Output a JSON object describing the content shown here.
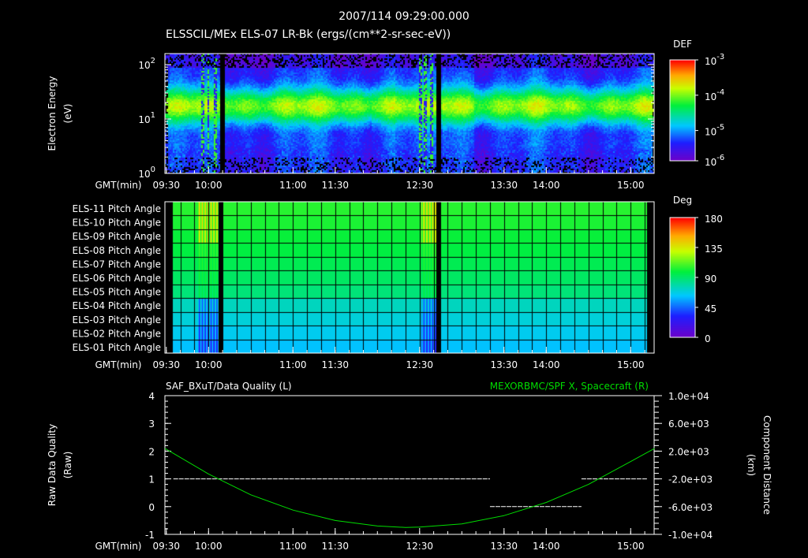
{
  "header": {
    "timestamp": "2007/114 09:29:00.000",
    "title": "ELSSCIL/MEx ELS-07 LR-Bk  (ergs/(cm**2-sr-sec-eV))"
  },
  "chart_data": [
    {
      "type": "heatmap",
      "name": "energy-spectrogram",
      "ylabel": "Electron Energy (eV)",
      "yscale": "log",
      "ylim": [
        1,
        160
      ],
      "yticks": [
        "10^0",
        "10^1",
        "10^2"
      ],
      "xlabel": "GMT(min)",
      "xlim": [
        "09:29",
        "15:17"
      ],
      "xticks": [
        "09:30",
        "10:00",
        "11:00",
        "11:30",
        "12:30",
        "13:30",
        "14:00",
        "15:00"
      ],
      "colorbar": {
        "label": "DEF",
        "scale": "log",
        "range": [
          1e-06,
          0.001
        ],
        "ticks": [
          "10^-3",
          "10^-4",
          "10^-5",
          "10^-6"
        ]
      },
      "peak_energy_eV": 20,
      "data_gaps": [
        "10:07",
        "12:46"
      ]
    },
    {
      "type": "heatmap",
      "name": "pitch-angle",
      "rows": [
        "ELS-11 Pitch Angle",
        "ELS-10 Pitch Angle",
        "ELS-09 Pitch Angle",
        "ELS-08 Pitch Angle",
        "ELS-07 Pitch Angle",
        "ELS-06 Pitch Angle",
        "ELS-05 Pitch Angle",
        "ELS-04 Pitch Angle",
        "ELS-03 Pitch Angle",
        "ELS-02 Pitch Angle",
        "ELS-01 Pitch Angle"
      ],
      "row_values_deg": [
        105,
        103,
        100,
        98,
        95,
        92,
        88,
        75,
        70,
        66,
        62
      ],
      "xlabel": "GMT(min)",
      "xticks": [
        "09:30",
        "10:00",
        "11:00",
        "11:30",
        "12:30",
        "13:30",
        "14:00",
        "15:00"
      ],
      "colorbar": {
        "label": "Deg",
        "range": [
          0,
          180
        ],
        "ticks": [
          "180",
          "135",
          "90",
          "45",
          "0"
        ]
      }
    },
    {
      "type": "line",
      "name": "quality-and-position",
      "title_left": "SAF_BXuT/Data Quality (L)",
      "title_right": "MEXORBMC/SPF X, Spacecraft (R)",
      "ylabel_left": "Raw Data Quality (Raw)",
      "ylabel_right": "Component Distance (km)",
      "ylim_left": [
        -1,
        4
      ],
      "yticks_left": [
        "4",
        "3",
        "2",
        "1",
        "0",
        "-1"
      ],
      "ylim_right": [
        -10000,
        10000
      ],
      "yticks_right": [
        "1.0e+04",
        "6.0e+03",
        "2.0e+03",
        "-2.0e+03",
        "-6.0e+03",
        "-1.0e+04"
      ],
      "xlabel": "GMT(min)",
      "xticks": [
        "09:30",
        "10:00",
        "11:00",
        "11:30",
        "12:30",
        "13:30",
        "14:00",
        "15:00"
      ],
      "series": [
        {
          "name": "Data Quality",
          "axis": "left",
          "color": "#ffffff",
          "segments": [
            {
              "from": "09:35",
              "to": "13:20",
              "value": 1
            },
            {
              "from": "13:20",
              "to": "14:25",
              "value": 0
            },
            {
              "from": "14:25",
              "to": "15:12",
              "value": 1
            }
          ]
        },
        {
          "name": "SPF X",
          "axis": "right",
          "color": "#00dd00",
          "x": [
            "09:29",
            "10:00",
            "10:30",
            "11:00",
            "11:30",
            "12:00",
            "12:20",
            "12:30",
            "13:00",
            "13:30",
            "14:00",
            "14:30",
            "15:00",
            "15:17"
          ],
          "values": [
            2400,
            -1300,
            -4300,
            -6500,
            -8000,
            -8800,
            -9000,
            -8950,
            -8500,
            -7300,
            -5400,
            -2800,
            500,
            2400
          ]
        }
      ]
    }
  ]
}
